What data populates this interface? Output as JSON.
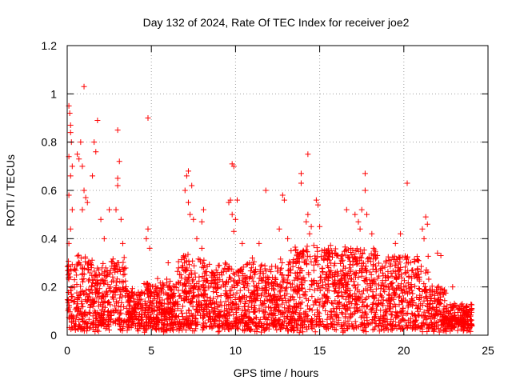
{
  "chart_data": {
    "type": "scatter",
    "title": "Day 132 of 2024, Rate Of TEC Index for receiver joe2",
    "xlabel": "GPS time / hours",
    "ylabel": "ROTI / TECUs",
    "xlim": [
      0,
      25
    ],
    "ylim": [
      0,
      1.2
    ],
    "x_ticks": [
      0,
      5,
      10,
      15,
      20,
      25
    ],
    "x_tick_labels": [
      "0",
      "5",
      "10",
      "15",
      "20",
      "25"
    ],
    "y_ticks": [
      0,
      0.2,
      0.4,
      0.6,
      0.8,
      1.0,
      1.2
    ],
    "y_tick_labels": [
      "0",
      "0.2",
      "0.4",
      "0.6",
      "0.8",
      "1",
      "1.2"
    ],
    "grid": true,
    "marker": "+",
    "marker_color": "#ff0000",
    "series": [
      {
        "name": "ROTI",
        "points": [
          [
            0.1,
            0.95
          ],
          [
            0.15,
            0.92
          ],
          [
            0.2,
            0.87
          ],
          [
            0.2,
            0.84
          ],
          [
            0.25,
            0.8
          ],
          [
            0.1,
            0.74
          ],
          [
            0.3,
            0.7
          ],
          [
            0.2,
            0.66
          ],
          [
            0.1,
            0.58
          ],
          [
            0.3,
            0.52
          ],
          [
            0.2,
            0.44
          ],
          [
            0.1,
            0.38
          ],
          [
            0.6,
            0.75
          ],
          [
            0.7,
            0.73
          ],
          [
            0.8,
            0.8
          ],
          [
            0.9,
            0.7
          ],
          [
            1.0,
            0.6
          ],
          [
            1.0,
            1.03
          ],
          [
            1.1,
            0.57
          ],
          [
            1.2,
            0.55
          ],
          [
            0.9,
            0.52
          ],
          [
            1.6,
            0.8
          ],
          [
            1.7,
            0.76
          ],
          [
            1.8,
            0.89
          ],
          [
            1.5,
            0.66
          ],
          [
            2.0,
            0.48
          ],
          [
            2.2,
            0.4
          ],
          [
            2.5,
            0.52
          ],
          [
            3.0,
            0.85
          ],
          [
            3.1,
            0.72
          ],
          [
            3.0,
            0.65
          ],
          [
            3.0,
            0.62
          ],
          [
            2.9,
            0.52
          ],
          [
            3.2,
            0.48
          ],
          [
            3.3,
            0.38
          ],
          [
            4.8,
            0.9
          ],
          [
            4.8,
            0.44
          ],
          [
            4.7,
            0.4
          ],
          [
            4.9,
            0.36
          ],
          [
            6.0,
            0.3
          ],
          [
            6.4,
            0.2
          ],
          [
            7.0,
            0.6
          ],
          [
            7.2,
            0.68
          ],
          [
            7.1,
            0.66
          ],
          [
            7.4,
            0.62
          ],
          [
            7.2,
            0.55
          ],
          [
            7.3,
            0.5
          ],
          [
            7.5,
            0.48
          ],
          [
            7.7,
            0.4
          ],
          [
            8.0,
            0.47
          ],
          [
            8.1,
            0.52
          ],
          [
            8.0,
            0.36
          ],
          [
            9.8,
            0.71
          ],
          [
            9.9,
            0.7
          ],
          [
            9.7,
            0.56
          ],
          [
            9.6,
            0.55
          ],
          [
            9.8,
            0.5
          ],
          [
            10.0,
            0.48
          ],
          [
            10.1,
            0.56
          ],
          [
            9.9,
            0.43
          ],
          [
            10.4,
            0.38
          ],
          [
            11.8,
            0.6
          ],
          [
            11.4,
            0.38
          ],
          [
            11.0,
            0.32
          ],
          [
            12.8,
            0.58
          ],
          [
            12.9,
            0.56
          ],
          [
            12.6,
            0.44
          ],
          [
            13.1,
            0.4
          ],
          [
            13.3,
            0.35
          ],
          [
            14.3,
            0.75
          ],
          [
            13.9,
            0.67
          ],
          [
            13.9,
            0.63
          ],
          [
            14.3,
            0.5
          ],
          [
            14.2,
            0.47
          ],
          [
            14.5,
            0.45
          ],
          [
            14.4,
            0.42
          ],
          [
            14.8,
            0.56
          ],
          [
            14.9,
            0.54
          ],
          [
            15.0,
            0.45
          ],
          [
            16.6,
            0.52
          ],
          [
            17.1,
            0.5
          ],
          [
            17.3,
            0.47
          ],
          [
            17.5,
            0.52
          ],
          [
            17.7,
            0.67
          ],
          [
            17.7,
            0.6
          ],
          [
            17.8,
            0.5
          ],
          [
            17.4,
            0.44
          ],
          [
            18.1,
            0.42
          ],
          [
            18.2,
            0.36
          ],
          [
            20.2,
            0.63
          ],
          [
            19.8,
            0.42
          ],
          [
            19.5,
            0.38
          ],
          [
            21.3,
            0.49
          ],
          [
            21.4,
            0.46
          ],
          [
            21.1,
            0.44
          ],
          [
            21.2,
            0.4
          ],
          [
            22.0,
            0.34
          ],
          [
            22.2,
            0.33
          ],
          [
            22.9,
            0.2
          ],
          [
            23.7,
            0.09
          ]
        ]
      }
    ]
  }
}
